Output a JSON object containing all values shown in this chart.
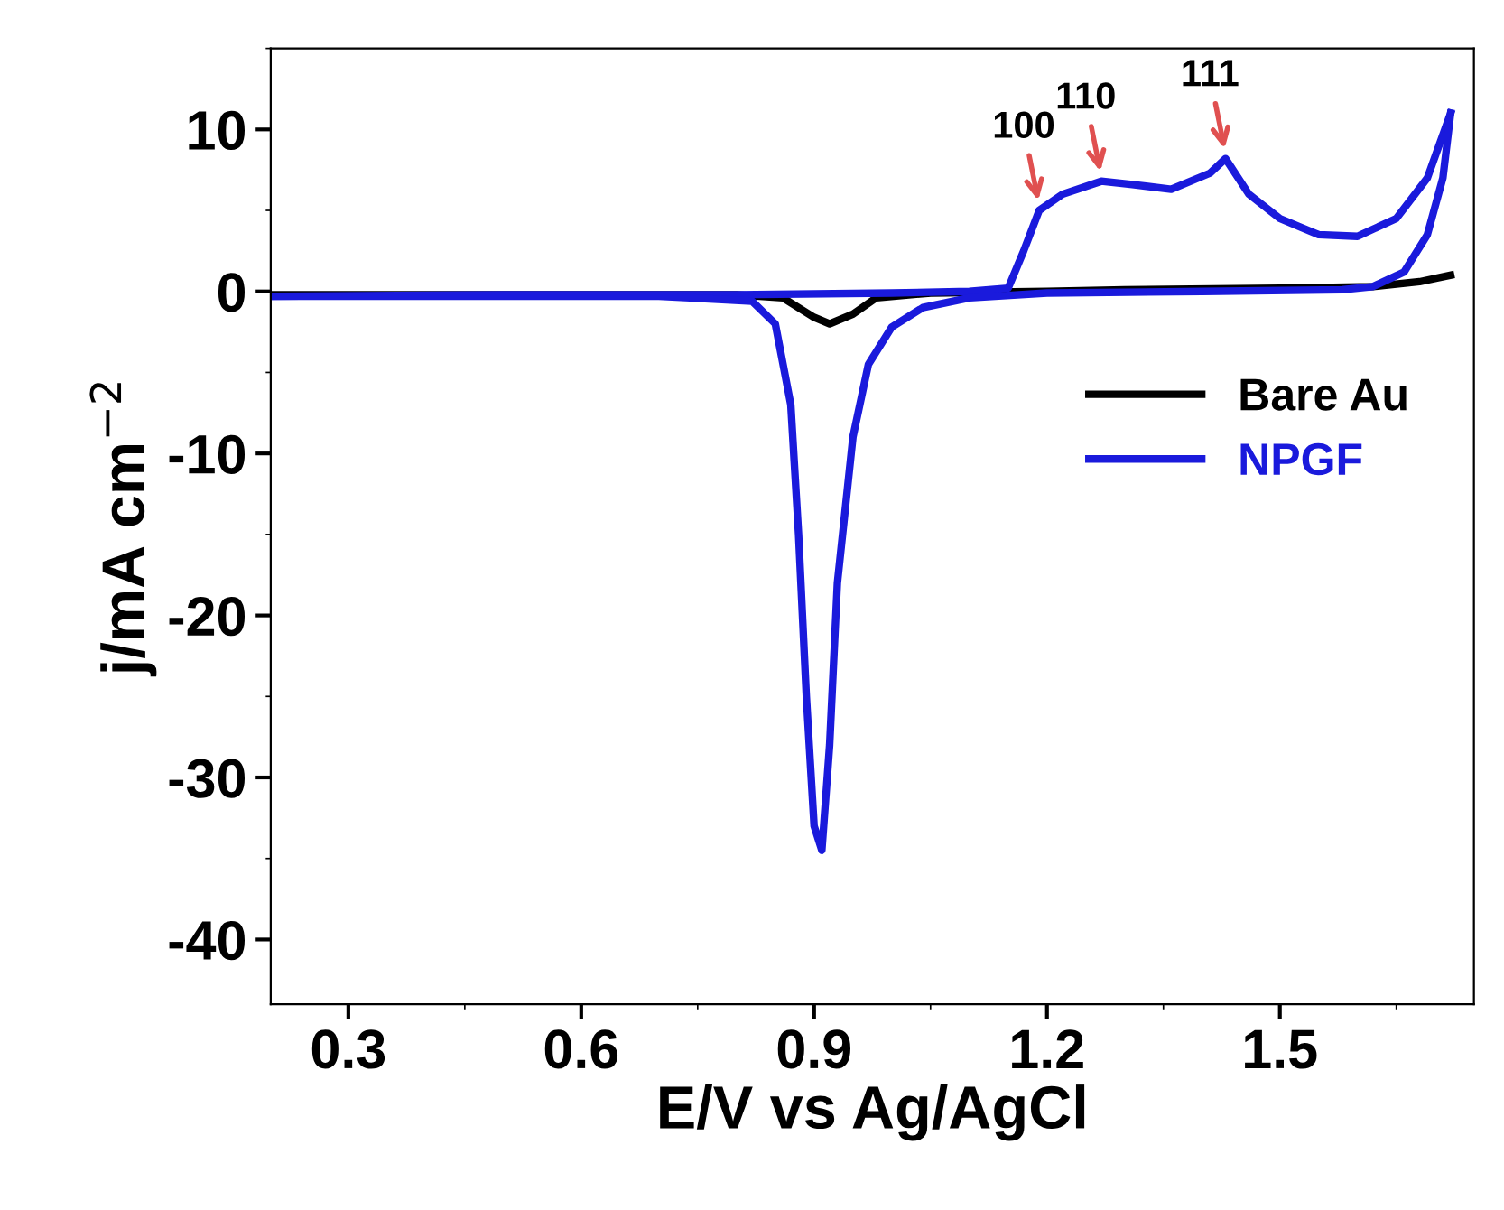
{
  "chart_data": {
    "type": "line",
    "xlabel": "E/V vs Ag/AgCl",
    "ylabel": "j/mA cm$^{−2}$",
    "xlim": [
      0.2,
      1.75
    ],
    "xticks": [
      0.3,
      0.6,
      0.9,
      1.2,
      1.5
    ],
    "ylim": [
      -44,
      15
    ],
    "yticks": [
      -40,
      -30,
      -20,
      -10,
      0,
      10
    ],
    "grid": false,
    "legend": "right",
    "marker": "none",
    "line_style": "solid",
    "series": [
      {
        "name": "Bare Au",
        "color": "#000000",
        "x": [
          0.2,
          0.5,
          0.8,
          0.86,
          0.9,
          0.92,
          0.95,
          0.98,
          1.05,
          1.2,
          1.3,
          1.5,
          1.62,
          1.68,
          1.72
        ],
        "values": [
          -0.2,
          -0.2,
          -0.2,
          -0.4,
          -1.6,
          -2.0,
          -1.4,
          -0.4,
          -0.1,
          0.0,
          0.1,
          0.2,
          0.3,
          0.6,
          1.0
        ]
      },
      {
        "name": "NPGF",
        "color": "#1a1adc",
        "x": [
          0.2,
          0.5,
          0.8,
          1.0,
          1.1,
          1.15,
          1.17,
          1.19,
          1.22,
          1.27,
          1.31,
          1.36,
          1.41,
          1.43,
          1.46,
          1.5,
          1.55,
          1.6,
          1.65,
          1.69,
          1.72
        ],
        "values": [
          -0.3,
          -0.2,
          -0.2,
          -0.1,
          0.0,
          0.2,
          2.5,
          5.0,
          6.0,
          6.8,
          6.6,
          6.3,
          7.3,
          8.2,
          6.0,
          4.5,
          3.5,
          3.4,
          4.5,
          7.0,
          11.0
        ]
      },
      {
        "color": "#1a1adc",
        "x": [
          0.2,
          0.5,
          0.7,
          0.82,
          0.85,
          0.87,
          0.88,
          0.89,
          0.9,
          0.91,
          0.92,
          0.93,
          0.95,
          0.97,
          1.0,
          1.04,
          1.1,
          1.2,
          1.4,
          1.58,
          1.62,
          1.66,
          1.69,
          1.71,
          1.72
        ],
        "values": [
          -0.3,
          -0.3,
          -0.3,
          -0.6,
          -2.0,
          -7.0,
          -15.0,
          -25.0,
          -33.0,
          -34.5,
          -28.0,
          -18.0,
          -9.0,
          -4.5,
          -2.2,
          -1.0,
          -0.4,
          -0.1,
          0.0,
          0.1,
          0.3,
          1.2,
          3.5,
          7.0,
          11.0
        ]
      }
    ],
    "annotations": [
      {
        "text": "100",
        "x": 1.19,
        "y": 5.0
      },
      {
        "text": "110",
        "x": 1.27,
        "y": 6.8
      },
      {
        "text": "111",
        "x": 1.43,
        "y": 8.2
      }
    ]
  }
}
